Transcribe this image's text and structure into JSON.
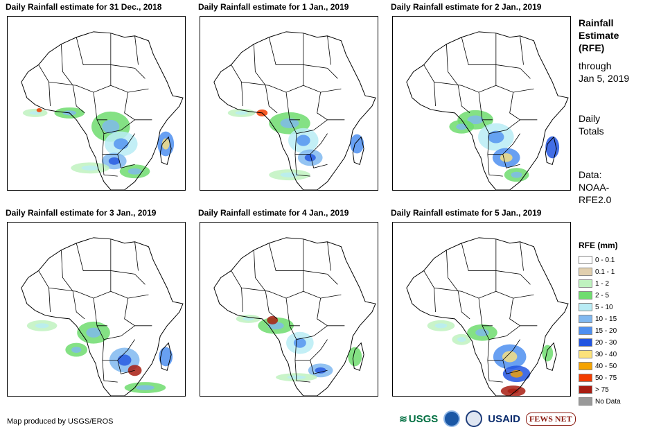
{
  "panels": [
    {
      "title": "Daily Rainfall estimate for 31 Dec., 2018"
    },
    {
      "title": "Daily Rainfall estimate for 1 Jan., 2019"
    },
    {
      "title": "Daily Rainfall estimate for 2 Jan., 2019"
    },
    {
      "title": "Daily Rainfall estimate for 3 Jan., 2019"
    },
    {
      "title": "Daily Rainfall estimate for 4 Jan., 2019"
    },
    {
      "title": "Daily Rainfall estimate for 5 Jan., 2019"
    }
  ],
  "sidebar": {
    "title_lines": [
      "Rainfall",
      "Estimate",
      "(RFE)"
    ],
    "through_lines": [
      "through",
      "Jan 5, 2019"
    ],
    "totals_lines": [
      "Daily",
      "Totals"
    ],
    "data_lines": [
      "Data:",
      "NOAA-",
      "RFE2.0"
    ]
  },
  "legend": {
    "title": "RFE (mm)",
    "items": [
      {
        "label": "0 - 0.1",
        "color": "#ffffff"
      },
      {
        "label": "0.1 - 1",
        "color": "#e1cfae"
      },
      {
        "label": "1 - 2",
        "color": "#bff2bf"
      },
      {
        "label": "2 - 5",
        "color": "#6fdc6f"
      },
      {
        "label": "5 - 10",
        "color": "#b8ecf5"
      },
      {
        "label": "10 - 15",
        "color": "#80b8f0"
      },
      {
        "label": "15 - 20",
        "color": "#4e8ff0"
      },
      {
        "label": "20 - 30",
        "color": "#2255e0"
      },
      {
        "label": "30 - 40",
        "color": "#fce27a"
      },
      {
        "label": "40 - 50",
        "color": "#f5a300"
      },
      {
        "label": "50 - 75",
        "color": "#f23c00"
      },
      {
        "label": "> 75",
        "color": "#a81d12"
      },
      {
        "label": "No Data",
        "color": "#999999"
      }
    ]
  },
  "footer": {
    "credit": "Map produced by USGS/EROS",
    "logos": {
      "usgs": "USGS",
      "usaid": "USAID",
      "fews": "FEWS NET"
    }
  }
}
